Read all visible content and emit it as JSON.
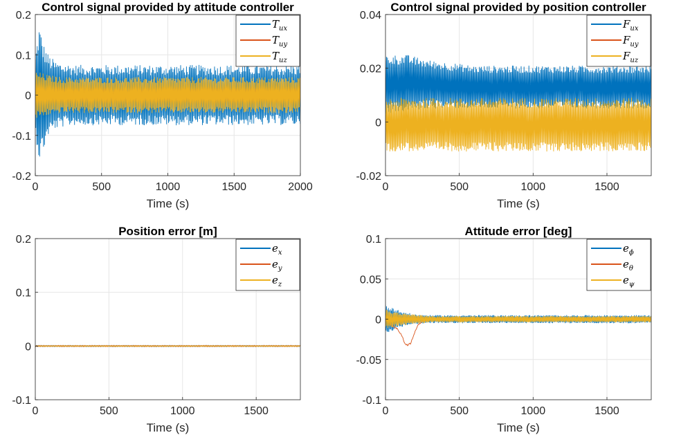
{
  "chart_data": [
    {
      "type": "line",
      "title": "Control signal provided by attitude controller",
      "xlabel": "Time (s)",
      "ylabel": "",
      "xlim": [
        0,
        2000
      ],
      "ylim": [
        -0.2,
        0.2
      ],
      "xticks": [
        0,
        500,
        1000,
        1500,
        2000
      ],
      "xtick_labels": [
        "0",
        "500",
        "1000",
        "1500",
        "2000"
      ],
      "yticks": [
        -0.2,
        -0.1,
        0,
        0.1,
        0.2
      ],
      "ytick_labels": [
        "-0.2",
        "-0.1",
        "0",
        "0.1",
        "0.2"
      ],
      "grid": true,
      "legend_position": "top-right",
      "series": [
        {
          "name": "T",
          "sub": "ux",
          "color": "#0072BD",
          "band": {
            "x": [
              0,
              30,
              60,
              100,
              150,
              200,
              300,
              500,
              1000,
              1500,
              2000
            ],
            "upper": [
              0.1,
              0.175,
              0.13,
              0.1,
              0.085,
              0.08,
              0.075,
              0.075,
              0.075,
              0.075,
              0.075
            ],
            "lower": [
              -0.1,
              -0.165,
              -0.14,
              -0.1,
              -0.085,
              -0.08,
              -0.075,
              -0.075,
              -0.075,
              -0.075,
              -0.075
            ]
          }
        },
        {
          "name": "T",
          "sub": "uy",
          "color": "#D95319",
          "band": {
            "x": [
              0,
              2000
            ],
            "upper": [
              0.02,
              0.02
            ],
            "lower": [
              -0.02,
              -0.02
            ]
          }
        },
        {
          "name": "T",
          "sub": "uz",
          "color": "#EDB120",
          "band": {
            "x": [
              0,
              100,
              200,
              2000
            ],
            "upper": [
              0.06,
              0.05,
              0.045,
              0.045
            ],
            "lower": [
              -0.06,
              -0.05,
              -0.045,
              -0.045
            ]
          }
        }
      ]
    },
    {
      "type": "line",
      "title": "Control signal provided by position controller",
      "xlabel": "Time (s)",
      "ylabel": "",
      "xlim": [
        0,
        1800
      ],
      "ylim": [
        -0.02,
        0.04
      ],
      "xticks": [
        0,
        500,
        1000,
        1500
      ],
      "xtick_labels": [
        "0",
        "500",
        "1000",
        "1500"
      ],
      "yticks": [
        -0.02,
        0,
        0.02,
        0.04
      ],
      "ytick_labels": [
        "-0.02",
        "0",
        "0.02",
        "0.04"
      ],
      "grid": true,
      "legend_position": "top-right",
      "series": [
        {
          "name": "F",
          "sub": "ux",
          "color": "#0072BD",
          "band": {
            "x": [
              0,
              150,
              300,
              600,
              1800
            ],
            "upper": [
              0.025,
              0.025,
              0.023,
              0.021,
              0.021
            ],
            "lower": [
              0.003,
              0.004,
              0.005,
              0.005,
              0.005
            ]
          }
        },
        {
          "name": "F",
          "sub": "uy",
          "color": "#D95319",
          "band": {
            "x": [
              0,
              1800
            ],
            "upper": [
              0.0,
              0.0
            ],
            "lower": [
              0.0,
              0.0
            ]
          }
        },
        {
          "name": "F",
          "sub": "uz",
          "color": "#EDB120",
          "band": {
            "x": [
              0,
              1800
            ],
            "upper": [
              0.009,
              0.009
            ],
            "lower": [
              -0.011,
              -0.011
            ]
          }
        }
      ]
    },
    {
      "type": "line",
      "title": "Position error [m]",
      "xlabel": "Time (s)",
      "ylabel": "",
      "xlim": [
        0,
        1800
      ],
      "ylim": [
        -0.1,
        0.2
      ],
      "xticks": [
        0,
        500,
        1000,
        1500
      ],
      "xtick_labels": [
        "0",
        "500",
        "1000",
        "1500"
      ],
      "yticks": [
        -0.1,
        0,
        0.1,
        0.2
      ],
      "ytick_labels": [
        "-0.1",
        "0",
        "0.1",
        "0.2"
      ],
      "grid": true,
      "legend_position": "top-right",
      "series": [
        {
          "name": "e",
          "sub": "x",
          "color": "#0072BD",
          "band": {
            "x": [
              0,
              1800
            ],
            "upper": [
              0.001,
              0.001
            ],
            "lower": [
              -0.001,
              -0.001
            ]
          }
        },
        {
          "name": "e",
          "sub": "y",
          "color": "#D95319",
          "band": {
            "x": [
              0,
              1800
            ],
            "upper": [
              0.001,
              0.001
            ],
            "lower": [
              -0.001,
              -0.001
            ]
          }
        },
        {
          "name": "e",
          "sub": "z",
          "color": "#EDB120",
          "band": {
            "x": [
              0,
              1800
            ],
            "upper": [
              0.0005,
              0.0005
            ],
            "lower": [
              -0.0005,
              -0.0005
            ]
          }
        }
      ]
    },
    {
      "type": "line",
      "title": "Attitude error [deg]",
      "xlabel": "Time (s)",
      "ylabel": "",
      "xlim": [
        0,
        1800
      ],
      "ylim": [
        -0.1,
        0.1
      ],
      "xticks": [
        0,
        500,
        1000,
        1500
      ],
      "xtick_labels": [
        "0",
        "500",
        "1000",
        "1500"
      ],
      "yticks": [
        -0.1,
        -0.05,
        0,
        0.05,
        0.1
      ],
      "ytick_labels": [
        "-0.1",
        "-0.05",
        "0",
        "0.05",
        "0.1"
      ],
      "grid": true,
      "legend_position": "top-right",
      "series": [
        {
          "name": "e",
          "sub": "ϕ",
          "color": "#0072BD",
          "band": {
            "x": [
              0,
              50,
              100,
              200,
              300,
              1800
            ],
            "upper": [
              0.018,
              0.015,
              0.01,
              0.006,
              0.005,
              0.005
            ],
            "lower": [
              -0.018,
              -0.015,
              -0.01,
              -0.006,
              -0.005,
              -0.005
            ]
          }
        },
        {
          "name": "e",
          "sub": "θ",
          "color": "#D95319",
          "curve": {
            "x": [
              0,
              40,
              80,
              110,
              130,
              150,
              170,
              200,
              220,
              250,
              300,
              1800
            ],
            "y": [
              0,
              -0.008,
              -0.012,
              -0.02,
              -0.03,
              -0.032,
              -0.03,
              -0.015,
              -0.008,
              -0.002,
              0,
              0
            ]
          }
        },
        {
          "name": "e",
          "sub": "ψ",
          "color": "#EDB120",
          "band": {
            "x": [
              0,
              100,
              300,
              1800
            ],
            "upper": [
              0.012,
              0.008,
              0.004,
              0.004
            ],
            "lower": [
              -0.012,
              -0.008,
              -0.004,
              -0.004
            ]
          }
        }
      ]
    }
  ]
}
